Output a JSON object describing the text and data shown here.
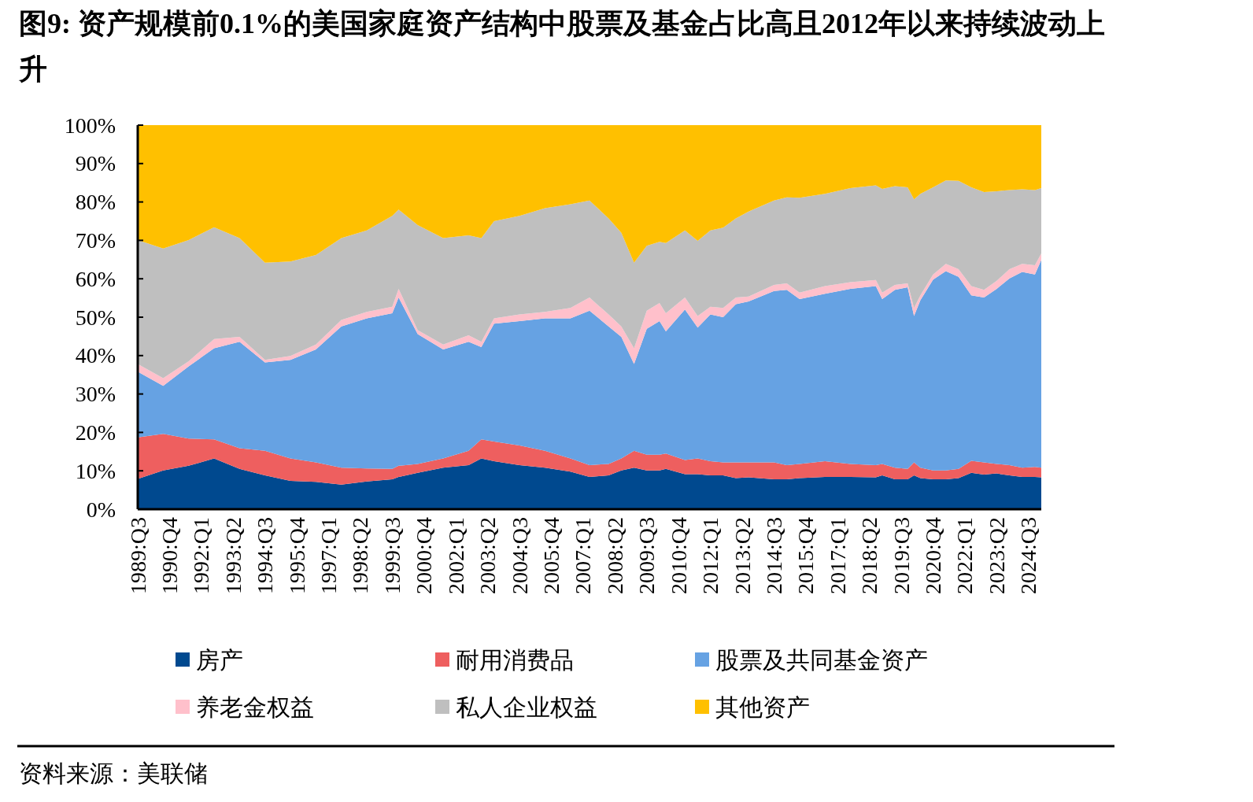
{
  "chart_data": {
    "type": "area",
    "stacked": true,
    "title": "图9:  资产规模前0.1%的美国家庭资产结构中股票及基金占比高且2012年以来持续波动上升",
    "annotations": [
      "资料来源：美联储"
    ],
    "x": [
      "1989-07",
      "1990-07",
      "1991-07",
      "1992-07",
      "1993-07",
      "1994-07",
      "1995-07",
      "1996-07",
      "1997-07",
      "1998-07",
      "1999-07",
      "1999-10",
      "2000-07",
      "2001-07",
      "2002-07",
      "2003-01",
      "2003-07",
      "2004-07",
      "2005-07",
      "2006-07",
      "2007-04",
      "2008-01",
      "2008-07",
      "2009-01",
      "2009-07",
      "2010-01",
      "2010-04",
      "2011-01",
      "2011-07",
      "2012-01",
      "2012-07",
      "2013-01",
      "2013-07",
      "2014-07",
      "2015-01",
      "2015-07",
      "2016-07",
      "2017-07",
      "2018-07",
      "2018-10",
      "2019-04",
      "2019-10",
      "2020-01",
      "2020-04",
      "2020-10",
      "2021-04",
      "2021-10",
      "2022-04",
      "2022-10",
      "2023-04",
      "2023-10",
      "2024-04",
      "2024-10",
      "2025-01"
    ],
    "series": [
      {
        "name": "房产",
        "color": "#00498f",
        "values": [
          7.9,
          10.1,
          11.3,
          13.2,
          10.5,
          8.8,
          7.4,
          7.1,
          6.4,
          7.2,
          7.8,
          8.4,
          9.5,
          10.8,
          11.5,
          13.2,
          12.5,
          11.5,
          10.8,
          9.8,
          8.4,
          8.8,
          10.1,
          10.8,
          10.1,
          10.1,
          10.5,
          9.1,
          9.1,
          8.8,
          8.8,
          8.1,
          8.3,
          7.8,
          7.8,
          8.1,
          8.4,
          8.4,
          8.3,
          8.8,
          7.8,
          7.8,
          8.8,
          8.1,
          7.8,
          7.8,
          8.1,
          9.5,
          9.0,
          9.3,
          8.8,
          8.4,
          8.4,
          8.3
        ]
      },
      {
        "name": "耐用消费品",
        "color": "#ee5f5f",
        "values": [
          10.8,
          9.5,
          7.1,
          5.0,
          5.4,
          6.4,
          5.8,
          5.1,
          4.4,
          3.4,
          2.7,
          2.9,
          2.3,
          2.4,
          3.7,
          5.0,
          5.1,
          5.1,
          4.4,
          3.4,
          3.1,
          3.0,
          3.1,
          4.4,
          4.1,
          4.1,
          4.0,
          3.7,
          4.1,
          3.7,
          3.4,
          4.1,
          3.9,
          4.4,
          3.7,
          3.7,
          4.1,
          3.4,
          3.2,
          3.0,
          3.0,
          2.7,
          3.4,
          2.7,
          2.3,
          2.3,
          2.4,
          3.1,
          3.2,
          2.5,
          2.7,
          2.4,
          2.6,
          2.5
        ]
      },
      {
        "name": "股票及共同基金资产",
        "color": "#66a2e3",
        "values": [
          17.1,
          12.5,
          18.8,
          23.7,
          27.7,
          23.0,
          25.7,
          29.4,
          36.8,
          39.1,
          40.5,
          43.8,
          33.8,
          28.4,
          28.4,
          24.0,
          30.7,
          32.4,
          34.5,
          36.5,
          40.2,
          35.8,
          31.7,
          22.6,
          32.8,
          34.8,
          31.8,
          39.2,
          34.1,
          38.2,
          37.8,
          41.2,
          41.9,
          44.6,
          45.6,
          42.9,
          43.6,
          45.6,
          46.6,
          42.9,
          46.3,
          47.3,
          38.1,
          43.6,
          49.7,
          51.9,
          50.0,
          43.1,
          42.9,
          45.6,
          48.6,
          51.0,
          50.1,
          54.1
        ]
      },
      {
        "name": "养老金权益",
        "color": "#ffc0cb",
        "values": [
          2.0,
          2.0,
          1.3,
          2.4,
          1.3,
          0.7,
          1.0,
          1.3,
          1.7,
          1.7,
          1.7,
          2.3,
          1.0,
          1.3,
          1.7,
          1.4,
          1.4,
          1.7,
          1.7,
          2.7,
          3.4,
          3.1,
          2.7,
          4.1,
          4.7,
          4.7,
          4.7,
          3.1,
          3.0,
          2.0,
          2.4,
          1.7,
          1.3,
          1.6,
          1.7,
          1.7,
          2.0,
          1.7,
          1.6,
          1.7,
          1.3,
          1.0,
          2.1,
          1.3,
          1.3,
          1.9,
          2.0,
          2.4,
          2.0,
          2.1,
          2.4,
          2.1,
          2.4,
          1.7
        ]
      },
      {
        "name": "私人企业权益",
        "color": "#bfbfbf",
        "values": [
          32.3,
          33.8,
          31.6,
          29.1,
          25.7,
          25.3,
          24.6,
          23.3,
          21.3,
          21.2,
          23.7,
          20.6,
          27.4,
          27.7,
          26.0,
          27.0,
          25.3,
          25.7,
          27.0,
          27.0,
          25.3,
          25.0,
          24.4,
          22.3,
          16.9,
          15.9,
          18.3,
          17.5,
          19.6,
          19.9,
          20.9,
          20.6,
          22.1,
          22.0,
          22.4,
          24.7,
          24.0,
          24.5,
          24.6,
          27.0,
          25.7,
          25.0,
          28.3,
          26.4,
          22.7,
          21.7,
          23.0,
          25.7,
          25.5,
          23.3,
          20.6,
          19.4,
          19.6,
          17.0
        ]
      },
      {
        "name": "其他资产",
        "color": "#ffc000",
        "values": [
          29.9,
          32.1,
          29.9,
          26.6,
          29.4,
          35.8,
          35.5,
          33.8,
          29.4,
          27.4,
          23.6,
          22.0,
          26.0,
          29.4,
          28.7,
          29.4,
          25.0,
          23.6,
          21.6,
          20.6,
          19.6,
          24.3,
          28.0,
          35.8,
          31.4,
          30.4,
          30.7,
          27.4,
          30.1,
          27.4,
          26.7,
          24.3,
          22.5,
          19.6,
          18.8,
          18.9,
          17.9,
          16.4,
          15.7,
          16.6,
          15.9,
          16.2,
          19.3,
          17.9,
          16.2,
          14.4,
          14.5,
          16.2,
          17.4,
          17.2,
          16.9,
          16.7,
          16.9,
          16.4
        ]
      }
    ],
    "xlim": [
      "1989-07",
      "2025-01"
    ],
    "xticks": [
      {
        "value": "1989-07",
        "label": "1989:Q3"
      },
      {
        "value": "1990-10",
        "label": "1990:Q4"
      },
      {
        "value": "1992-01",
        "label": "1992:Q1"
      },
      {
        "value": "1993-04",
        "label": "1993:Q2"
      },
      {
        "value": "1994-07",
        "label": "1994:Q3"
      },
      {
        "value": "1995-10",
        "label": "1995:Q4"
      },
      {
        "value": "1997-01",
        "label": "1997:Q1"
      },
      {
        "value": "1998-04",
        "label": "1998:Q2"
      },
      {
        "value": "1999-07",
        "label": "1999:Q3"
      },
      {
        "value": "2000-10",
        "label": "2000:Q4"
      },
      {
        "value": "2002-01",
        "label": "2002:Q1"
      },
      {
        "value": "2003-04",
        "label": "2003:Q2"
      },
      {
        "value": "2004-07",
        "label": "2004:Q3"
      },
      {
        "value": "2005-10",
        "label": "2005:Q4"
      },
      {
        "value": "2007-01",
        "label": "2007:Q1"
      },
      {
        "value": "2008-04",
        "label": "2008:Q2"
      },
      {
        "value": "2009-07",
        "label": "2009:Q3"
      },
      {
        "value": "2010-10",
        "label": "2010:Q4"
      },
      {
        "value": "2012-01",
        "label": "2012:Q1"
      },
      {
        "value": "2013-04",
        "label": "2013:Q2"
      },
      {
        "value": "2014-07",
        "label": "2014:Q3"
      },
      {
        "value": "2015-10",
        "label": "2015:Q4"
      },
      {
        "value": "2017-01",
        "label": "2017:Q1"
      },
      {
        "value": "2018-04",
        "label": "2018:Q2"
      },
      {
        "value": "2019-07",
        "label": "2019:Q3"
      },
      {
        "value": "2020-10",
        "label": "2020:Q4"
      },
      {
        "value": "2022-01",
        "label": "2022:Q1"
      },
      {
        "value": "2023-04",
        "label": "2023:Q2"
      },
      {
        "value": "2024-07",
        "label": "2024:Q3"
      }
    ],
    "ylim": [
      0,
      100
    ],
    "yticks": [
      {
        "value": 0,
        "label": "0%"
      },
      {
        "value": 10,
        "label": "10%"
      },
      {
        "value": 20,
        "label": "20%"
      },
      {
        "value": 30,
        "label": "30%"
      },
      {
        "value": 40,
        "label": "40%"
      },
      {
        "value": 50,
        "label": "50%"
      },
      {
        "value": 60,
        "label": "60%"
      },
      {
        "value": 70,
        "label": "70%"
      },
      {
        "value": 80,
        "label": "80%"
      },
      {
        "value": 90,
        "label": "90%"
      },
      {
        "value": 100,
        "label": "100%"
      }
    ],
    "grid": false,
    "legend": "bottom"
  }
}
